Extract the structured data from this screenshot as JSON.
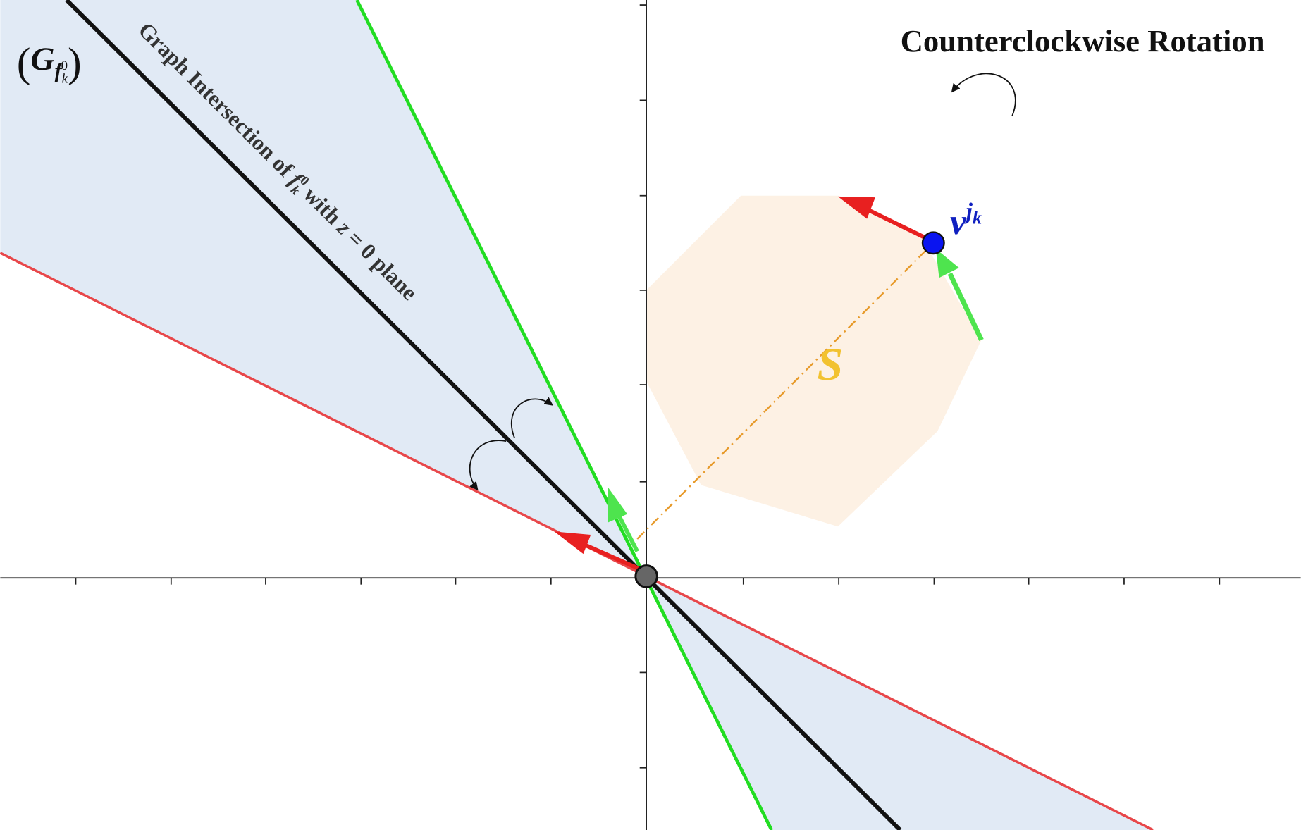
{
  "title": "Counterclockwise Rotation",
  "cone_label": {
    "open": "(",
    "letter": "G",
    "sub": "f",
    "subsub": "k",
    "subsup": "0",
    "close": ")"
  },
  "line_label": {
    "p1": "Graph Intersection of ",
    "f": "f",
    "sub": "k",
    "sup": "0",
    "p2": " with ",
    "z": "z",
    "p3": " = 0 plane"
  },
  "vertex_label": {
    "base": "v",
    "sup": "j",
    "supsub": "k"
  },
  "set_label": "S"
}
